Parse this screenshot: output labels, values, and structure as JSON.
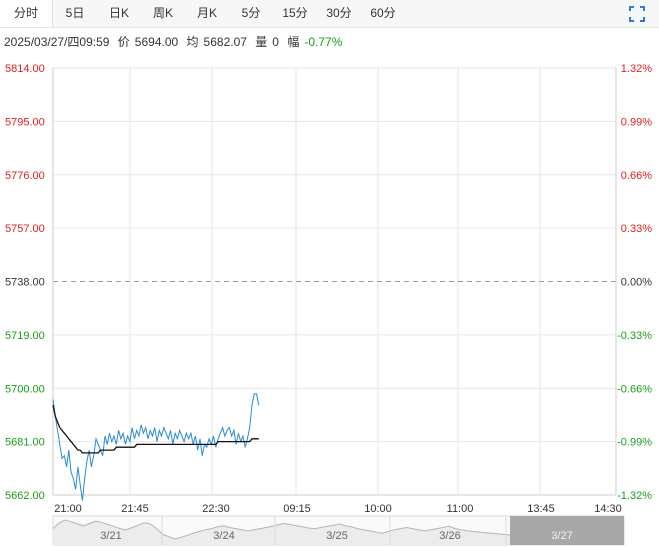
{
  "tabs": [
    {
      "label": "分时",
      "active": true
    },
    {
      "label": "5日",
      "active": false
    },
    {
      "label": "日K",
      "active": false
    },
    {
      "label": "周K",
      "active": false
    },
    {
      "label": "月K",
      "active": false
    },
    {
      "label": "5分",
      "active": false
    },
    {
      "label": "15分",
      "active": false
    },
    {
      "label": "30分",
      "active": false
    },
    {
      "label": "60分",
      "active": false
    }
  ],
  "info": {
    "datetime": "2025/03/27/四09:59",
    "price_label": "价",
    "price": "5694.00",
    "avg_label": "均",
    "avg": "5682.07",
    "volume_label": "量",
    "volume": "0",
    "change_label": "幅",
    "change": "-0.77%"
  },
  "colors": {
    "up": "#e02020",
    "down": "#1a9e1a",
    "flat": "#333333",
    "price_line": "#2a8bd0",
    "avg_line": "#111111"
  },
  "chart_data": {
    "type": "line",
    "base": 5738,
    "ylim": [
      5662,
      5814
    ],
    "y_ticks": [
      "5814.00",
      "5795.00",
      "5776.00",
      "5757.00",
      "5738.00",
      "5719.00",
      "5700.00",
      "5681.00",
      "5662.00"
    ],
    "pct_ticks": [
      "1.32%",
      "0.99%",
      "0.66%",
      "0.33%",
      "0.00%",
      "-0.33%",
      "-0.66%",
      "-0.99%",
      "-1.32%"
    ],
    "x_ticks": [
      "21:00",
      "21:45",
      "22:30",
      "09:15",
      "10:00",
      "11:00",
      "13:45",
      "14:30"
    ],
    "series": [
      {
        "values": [
          5696,
          5690,
          5685,
          5680,
          5675,
          5676,
          5672,
          5678,
          5670,
          5668,
          5664,
          5672,
          5666,
          5660,
          5668,
          5674,
          5678,
          5672,
          5676,
          5682,
          5680,
          5678,
          5676,
          5683,
          5680,
          5684,
          5681,
          5683,
          5680,
          5685,
          5682,
          5684,
          5680,
          5683,
          5681,
          5686,
          5682,
          5685,
          5683,
          5687,
          5684,
          5686,
          5682,
          5685,
          5683,
          5686,
          5681,
          5685,
          5683,
          5686,
          5684,
          5682,
          5685,
          5680,
          5684,
          5682,
          5685,
          5683,
          5681,
          5684,
          5682,
          5684,
          5680,
          5683,
          5678,
          5682,
          5676,
          5680,
          5679,
          5682,
          5680,
          5683,
          5679,
          5682,
          5684,
          5686,
          5683,
          5685,
          5686,
          5683,
          5685,
          5680,
          5684,
          5681,
          5683,
          5679,
          5682,
          5686,
          5694,
          5698,
          5698,
          5694
        ]
      },
      {
        "values": [
          5694,
          5690,
          5688,
          5686,
          5685,
          5684,
          5683,
          5682,
          5681,
          5680,
          5679,
          5678,
          5678,
          5677,
          5677,
          5677,
          5677,
          5677,
          5677,
          5677,
          5677,
          5678,
          5678,
          5678,
          5678,
          5678,
          5678,
          5678,
          5679,
          5679,
          5679,
          5679,
          5679,
          5679,
          5679,
          5679,
          5679,
          5680,
          5680,
          5680,
          5680,
          5680,
          5680,
          5680,
          5680,
          5680,
          5680,
          5680,
          5680,
          5680,
          5680,
          5680,
          5680,
          5680,
          5680,
          5680,
          5680,
          5680,
          5680,
          5680,
          5680,
          5680,
          5680,
          5680,
          5680,
          5680,
          5680,
          5680,
          5680,
          5680,
          5680,
          5680,
          5680,
          5681,
          5681,
          5681,
          5681,
          5681,
          5681,
          5681,
          5681,
          5681,
          5681,
          5681,
          5681,
          5681,
          5681,
          5681,
          5682,
          5682,
          5682,
          5682
        ]
      }
    ],
    "total_points": 250,
    "nav": {
      "dates": [
        "3/21",
        "3/24",
        "3/25",
        "3/26",
        "3/27"
      ],
      "history": [
        5690,
        5700,
        5705,
        5702,
        5698,
        5695,
        5699,
        5703,
        5701,
        5697,
        5694,
        5690,
        5688,
        5692,
        5696,
        5700,
        5698,
        5690,
        5680,
        5676,
        5672,
        5675,
        5678,
        5682,
        5685,
        5688,
        5690,
        5693,
        5695,
        5692,
        5690,
        5688,
        5686,
        5688,
        5690,
        5692,
        5694,
        5697,
        5699,
        5697,
        5695,
        5693,
        5691,
        5690,
        5692,
        5694,
        5696,
        5698,
        5695,
        5693,
        5690,
        5688,
        5686,
        5684,
        5682,
        5685,
        5688,
        5690,
        5692,
        5690,
        5688,
        5686,
        5688,
        5690,
        5692,
        5694,
        5690,
        5688,
        5686,
        5685,
        5684,
        5683,
        5682,
        5681,
        5680,
        5679
      ]
    }
  }
}
